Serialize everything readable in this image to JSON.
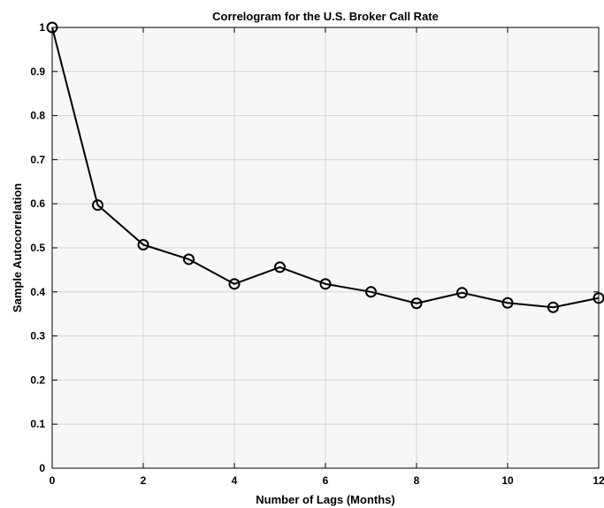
{
  "chart_data": {
    "type": "line",
    "title": "Correlogram for the U.S. Broker Call Rate",
    "xlabel": "Number of Lags (Months)",
    "ylabel": "Sample Autocorrelation",
    "xlim": [
      0,
      12
    ],
    "ylim": [
      0,
      1
    ],
    "x_ticks": [
      "0",
      "2",
      "4",
      "6",
      "8",
      "10",
      "12"
    ],
    "y_ticks": [
      "0",
      "0.1",
      "0.2",
      "0.3",
      "0.4",
      "0.5",
      "0.6",
      "0.7",
      "0.8",
      "0.9",
      "1"
    ],
    "grid": true,
    "marker": "circle",
    "line_color": "#000000",
    "background_color": "#f7f7f7",
    "x": [
      0,
      1,
      2,
      3,
      4,
      5,
      6,
      7,
      8,
      9,
      10,
      11,
      12
    ],
    "values": [
      1.0,
      0.597,
      0.507,
      0.474,
      0.418,
      0.456,
      0.418,
      0.4,
      0.374,
      0.398,
      0.375,
      0.365,
      0.386
    ]
  }
}
